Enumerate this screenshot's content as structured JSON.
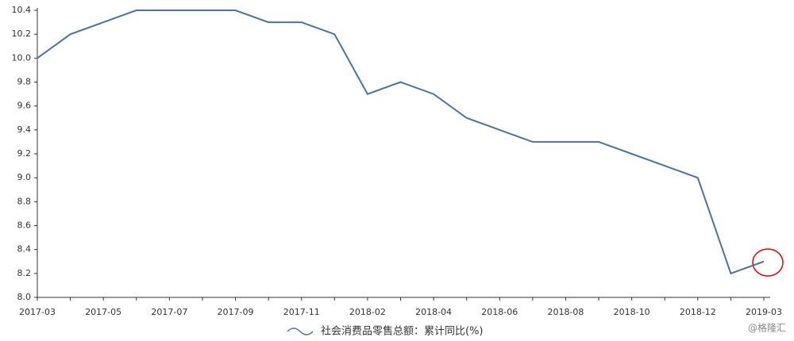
{
  "chart_data": {
    "type": "line",
    "categories": [
      "2017-03",
      null,
      "2017-05",
      null,
      "2017-07",
      null,
      "2017-09",
      null,
      "2017-11",
      null,
      "2018-02",
      null,
      "2018-04",
      null,
      "2018-06",
      null,
      "2018-08",
      null,
      "2018-10",
      null,
      "2018-12",
      null,
      "2019-03"
    ],
    "series": [
      {
        "name": "社会消费品零售总额：累计同比(%)",
        "color": "#4f72a2",
        "values": [
          10.0,
          10.2,
          10.3,
          10.4,
          10.4,
          10.4,
          10.4,
          10.3,
          10.3,
          10.2,
          9.7,
          9.8,
          9.7,
          9.5,
          9.4,
          9.3,
          9.3,
          9.3,
          9.2,
          9.1,
          9.0,
          8.2,
          8.3
        ]
      }
    ],
    "ylim": [
      8.0,
      10.4
    ],
    "yticks": [
      {
        "value": 8.0,
        "label": "8.0"
      },
      8.2,
      8.4,
      8.6,
      8.8,
      {
        "value": 9.0,
        "label": "9.0"
      },
      9.2,
      9.4,
      9.6,
      9.8,
      {
        "value": 10.0,
        "label": "10.0"
      },
      10.2,
      10.4
    ],
    "grid": false,
    "legend": "bottom",
    "watermark": "@格隆汇"
  }
}
